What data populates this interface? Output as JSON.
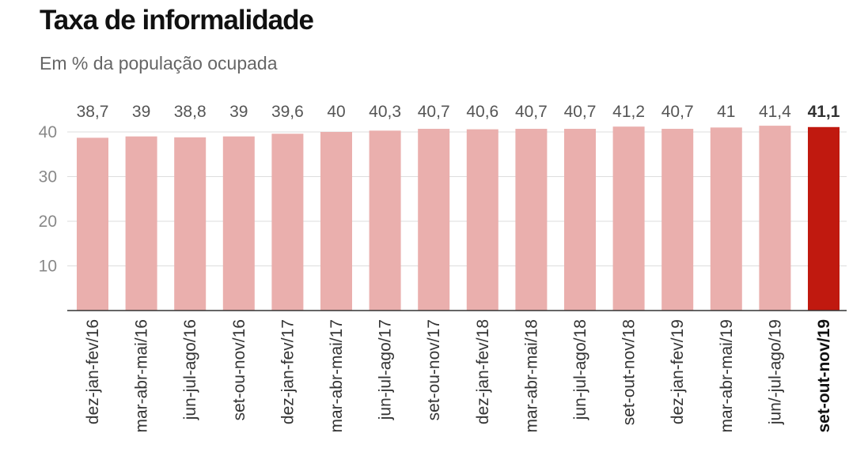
{
  "title": "Taxa de informalidade",
  "subtitle": "Em % da população ocupada",
  "colors": {
    "bar": "#eaafad",
    "highlight": "#c0190f",
    "grid": "#dddddd",
    "axis": "#333333"
  },
  "chart_data": {
    "type": "bar",
    "title": "Taxa de informalidade",
    "subtitle": "Em % da população ocupada",
    "xlabel": "",
    "ylabel": "",
    "ylim": [
      0,
      40
    ],
    "yticks": [
      10,
      20,
      30,
      40
    ],
    "grid": true,
    "categories": [
      "dez-jan-fev/16",
      "mar-abr-mai/16",
      "jun-jul-ago/16",
      "set-ou-nov/16",
      "dez-jan-fev/17",
      "mar-abr-mai/17",
      "jun-jul-ago/17",
      "set-ou-nov/17",
      "dez-jan-fev/18",
      "mar-abr-mai/18",
      "jun-jul-ago/18",
      "set-out-nov/18",
      "dez-jan-fev/19",
      "mar-abr-mai/19",
      "jun/-jul-ago/19",
      "set-out-nov/19"
    ],
    "values": [
      38.7,
      39,
      38.8,
      39,
      39.6,
      40,
      40.3,
      40.7,
      40.6,
      40.7,
      40.7,
      41.2,
      40.7,
      41,
      41.4,
      41.1
    ],
    "value_labels": [
      "38,7",
      "39",
      "38,8",
      "39",
      "39,6",
      "40",
      "40,3",
      "40,7",
      "40,6",
      "40,7",
      "40,7",
      "41,2",
      "40,7",
      "41",
      "41,4",
      "41,1"
    ],
    "highlight_index": 15
  }
}
